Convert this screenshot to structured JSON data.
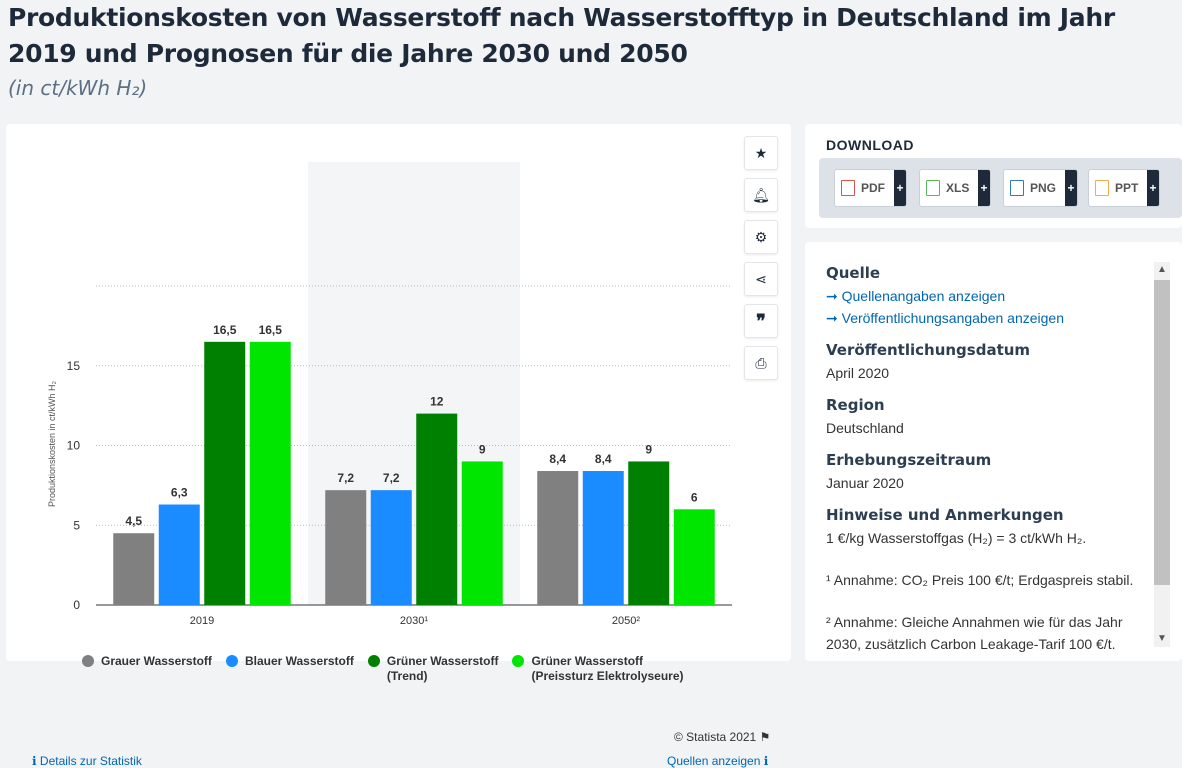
{
  "header": {
    "title": "Produktionskosten von Wasserstoff nach Wasserstofftyp in Deutschland im Jahr 2019 und Prognosen für die Jahre 2030 und 2050",
    "subtitle": "(in ct/kWh H₂)"
  },
  "chart_data": {
    "type": "bar",
    "categories": [
      "2019",
      "2030¹",
      "2050²"
    ],
    "series": [
      {
        "name": "Grauer Wasserstoff",
        "values": [
          4.5,
          7.2,
          8.4
        ],
        "labels": [
          "4,5",
          "7,2",
          "8,4"
        ],
        "color": "#808080"
      },
      {
        "name": "Blauer Wasserstoff",
        "values": [
          6.3,
          7.2,
          8.4
        ],
        "labels": [
          "6,3",
          "7,2",
          "8,4"
        ],
        "color": "#1a8cff"
      },
      {
        "name": "Grüner Wasserstoff (Trend)",
        "values": [
          16.5,
          12,
          9
        ],
        "labels": [
          "16,5",
          "12",
          "9"
        ],
        "color": "#008000"
      },
      {
        "name": "Grüner Wasserstoff (Preissturz Elektrolyseure)",
        "values": [
          16.5,
          9,
          6
        ],
        "labels": [
          "16,5",
          "9",
          "6"
        ],
        "color": "#00e600"
      }
    ],
    "ylabel": "Produktionskosten in ct/kWh H₂",
    "yticks": [
      "0",
      "5",
      "10",
      "15"
    ],
    "ylim": [
      0,
      20
    ],
    "grid": true
  },
  "legend": [
    {
      "line1": "Grauer Wasserstoff",
      "line2": "",
      "color": "#808080"
    },
    {
      "line1": "Blauer Wasserstoff",
      "line2": "",
      "color": "#1a8cff"
    },
    {
      "line1": "Grüner Wasserstoff",
      "line2": "(Trend)",
      "color": "#008000"
    },
    {
      "line1": "Grüner Wasserstoff",
      "line2": "(Preissturz Elektrolyseure)",
      "color": "#00e600"
    }
  ],
  "footer": {
    "copyright": "© Statista 2021",
    "details": "Details zur Statistik",
    "sources": "Quellen anzeigen"
  },
  "download": {
    "title": "DOWNLOAD",
    "buttons": [
      {
        "label": "PDF",
        "color": "#d9534f"
      },
      {
        "label": "XLS",
        "color": "#5cb85c"
      },
      {
        "label": "PNG",
        "color": "#337ab7"
      },
      {
        "label": "PPT",
        "color": "#f0ad4e"
      }
    ]
  },
  "info": {
    "source_h": "Quelle",
    "source_link1": "Quellenangaben anzeigen",
    "source_link2": "Veröffentlichungsangaben anzeigen",
    "pubdate_h": "Veröffentlichungsdatum",
    "pubdate": "April 2020",
    "region_h": "Region",
    "region": "Deutschland",
    "period_h": "Erhebungszeitraum",
    "period": "Januar 2020",
    "notes_h": "Hinweise und Anmerkungen",
    "note1": "1 €/kg Wasserstoffgas (H₂) = 3 ct/kWh H₂.",
    "note2": "¹ Annahme: CO₂ Preis 100 €/t; Erdgaspreis stabil.",
    "note3": "² Annahme: Gleiche Annahmen wie für das Jahr 2030, zusätzlich Carbon Leakage-Tarif 100 €/t."
  },
  "toolbar": {
    "icons": [
      "star-icon",
      "bell-icon",
      "gear-icon",
      "share-icon",
      "quote-icon",
      "print-icon"
    ]
  }
}
